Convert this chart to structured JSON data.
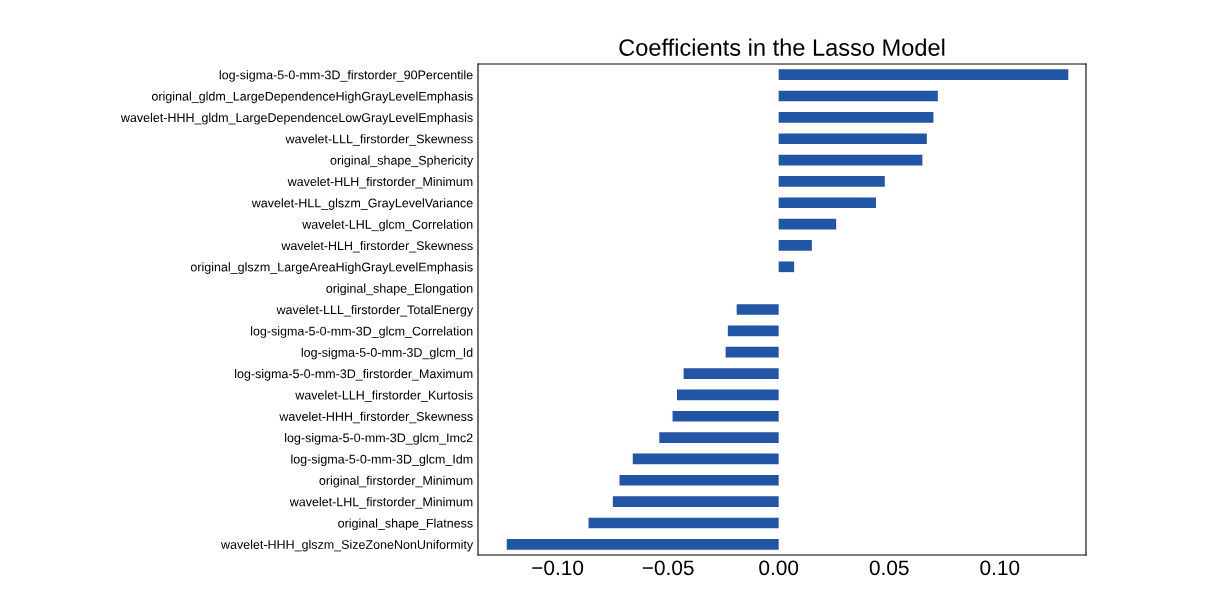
{
  "chart_data": {
    "type": "bar",
    "orientation": "horizontal",
    "title": "Coefficients in the Lasso Model",
    "categories": [
      "log-sigma-5-0-mm-3D_firstorder_90Percentile",
      "original_gldm_LargeDependenceHighGrayLevelEmphasis",
      "wavelet-HHH_gldm_LargeDependenceLowGrayLevelEmphasis",
      "wavelet-LLL_firstorder_Skewness",
      "original_shape_Sphericity",
      "wavelet-HLH_firstorder_Minimum",
      "wavelet-HLL_glszm_GrayLevelVariance",
      "wavelet-LHL_glcm_Correlation",
      "wavelet-HLH_firstorder_Skewness",
      "original_glszm_LargeAreaHighGrayLevelEmphasis",
      "original_shape_Elongation",
      "wavelet-LLL_firstorder_TotalEnergy",
      "log-sigma-5-0-mm-3D_glcm_Correlation",
      "log-sigma-5-0-mm-3D_glcm_Id",
      "log-sigma-5-0-mm-3D_firstorder_Maximum",
      "wavelet-LLH_firstorder_Kurtosis",
      "wavelet-HHH_firstorder_Skewness",
      "log-sigma-5-0-mm-3D_glcm_Imc2",
      "log-sigma-5-0-mm-3D_glcm_Idm",
      "original_firstorder_Minimum",
      "wavelet-LHL_firstorder_Minimum",
      "original_shape_Flatness",
      "wavelet-HHH_glszm_SizeZoneNonUniformity"
    ],
    "values": [
      0.131,
      0.072,
      0.07,
      0.067,
      0.065,
      0.048,
      0.044,
      0.026,
      0.015,
      0.007,
      0,
      -0.019,
      -0.023,
      -0.024,
      -0.043,
      -0.046,
      -0.048,
      -0.054,
      -0.066,
      -0.072,
      -0.075,
      -0.086,
      -0.123
    ],
    "color": "#2255a4",
    "xlim": [
      -0.136,
      0.139
    ],
    "xticks": [
      {
        "value": -0.1,
        "label": "−0.10"
      },
      {
        "value": -0.05,
        "label": "−0.05"
      },
      {
        "value": 0,
        "label": "0.00"
      },
      {
        "value": 0.05,
        "label": "0.05"
      },
      {
        "value": 0.1,
        "label": "0.10"
      }
    ],
    "grid": false,
    "legend": false
  }
}
